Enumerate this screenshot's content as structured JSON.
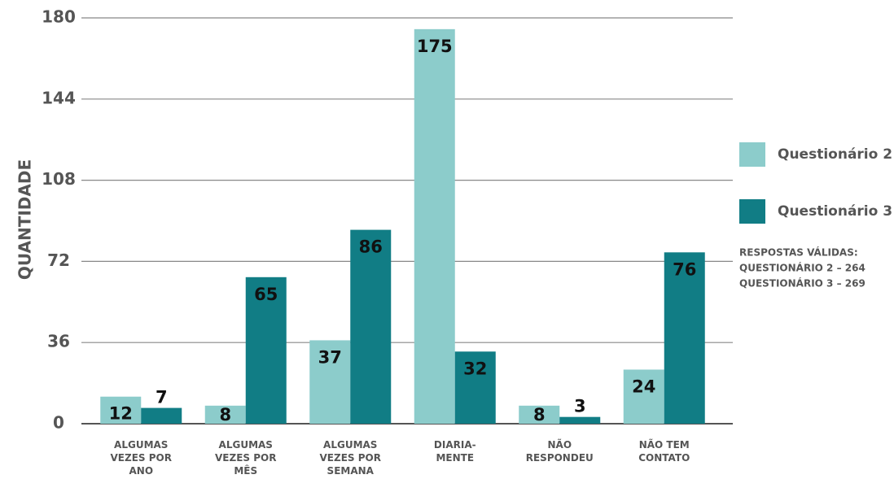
{
  "chart_data": {
    "type": "bar",
    "y_label": "QUANTIDADE",
    "categories": [
      "ALGUMAS\nVEZES POR\nANO",
      "ALGUMAS\nVEZES POR\nMÊS",
      "ALGUMAS\nVEZES POR\nSEMANA",
      "DIARIA-\nMENTE",
      "NÃO\nRESPONDEU",
      "NÃO TEM\nCONTATO"
    ],
    "series": [
      {
        "name": "Questionário 2",
        "color": "#8ccccb",
        "values": [
          12,
          8,
          37,
          175,
          8,
          24
        ]
      },
      {
        "name": "Questionário 3",
        "color": "#117d85",
        "values": [
          7,
          65,
          86,
          32,
          3,
          76
        ]
      }
    ],
    "ylim": [
      0,
      180
    ],
    "yticks": [
      0,
      36,
      72,
      108,
      144,
      180
    ],
    "grid": true,
    "notes": [
      "RESPOSTAS VÁLIDAS:",
      "QUESTIONÁRIO 2 – 264",
      "QUESTIONÁRIO 3 – 269"
    ]
  }
}
